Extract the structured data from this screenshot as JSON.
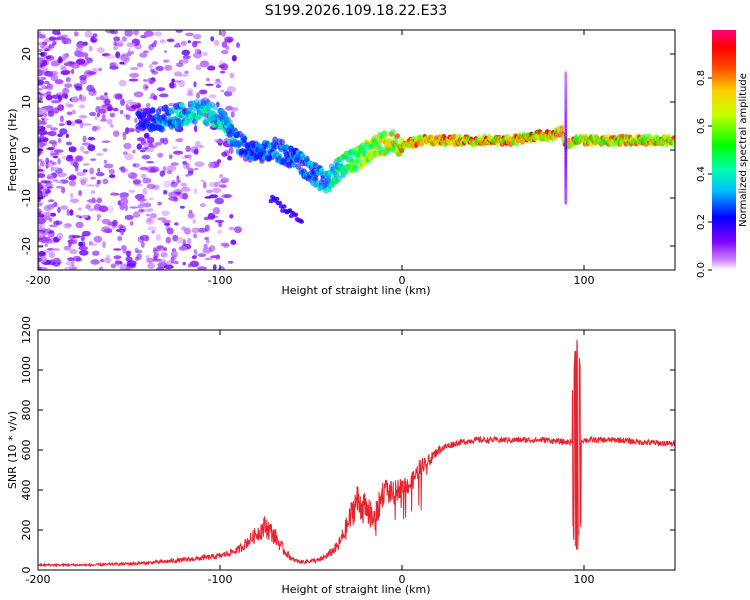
{
  "title": "S199.2026.109.18.22.E33",
  "chart_data": [
    {
      "type": "heatmap",
      "name": "spectrogram",
      "xlabel": "Height of straight line (km)",
      "ylabel": "Frequency (Hz)",
      "xlim": [
        -200,
        150
      ],
      "ylim": [
        -25,
        25
      ],
      "xticks": [
        -200,
        -100,
        0,
        100
      ],
      "yticks": [
        -20,
        -10,
        0,
        10,
        20
      ],
      "ridge": {
        "x": [
          -140,
          -125,
          -110,
          -100,
          -92,
          -85,
          -78,
          -70,
          -62,
          -55,
          -48,
          -42,
          -38,
          -32,
          -25,
          -18,
          -12,
          -5,
          0,
          10,
          20,
          40,
          60,
          75,
          82,
          88,
          90,
          95,
          110,
          130,
          150
        ],
        "y": [
          6,
          7,
          8,
          7,
          2,
          0,
          -1,
          0,
          -1,
          -3,
          -5,
          -7,
          -5,
          -3,
          -2,
          0,
          1,
          2,
          1,
          2,
          2,
          2,
          2,
          3,
          3,
          4,
          1,
          2,
          2,
          2,
          2
        ],
        "intensity": [
          0.25,
          0.4,
          0.45,
          0.45,
          0.35,
          0.3,
          0.3,
          0.35,
          0.3,
          0.35,
          0.35,
          0.4,
          0.45,
          0.55,
          0.6,
          0.7,
          0.75,
          0.8,
          0.85,
          0.9,
          0.95,
          0.95,
          0.95,
          0.9,
          0.95,
          1.0,
          0.9,
          0.85,
          0.85,
          0.85,
          0.85
        ]
      },
      "spike_x": 90
    },
    {
      "type": "line",
      "name": "snr",
      "xlabel": "Height of straight line (km)",
      "ylabel": "SNR (10 * v/v)",
      "xlim": [
        -200,
        150
      ],
      "ylim": [
        0,
        1200
      ],
      "xticks": [
        -200,
        -100,
        0,
        100
      ],
      "yticks": [
        0,
        200,
        400,
        600,
        800,
        1000,
        1200
      ],
      "envelope": {
        "x": [
          -200,
          -170,
          -140,
          -120,
          -100,
          -90,
          -80,
          -75,
          -70,
          -65,
          -60,
          -55,
          -45,
          -40,
          -35,
          -30,
          -25,
          -20,
          -15,
          -10,
          -5,
          0,
          5,
          10,
          15,
          20,
          25,
          30,
          40,
          50,
          60,
          70,
          80,
          88,
          92,
          95,
          97,
          100,
          110,
          120,
          130,
          140,
          150
        ],
        "y": [
          25,
          25,
          35,
          50,
          70,
          100,
          180,
          220,
          170,
          100,
          50,
          40,
          50,
          80,
          120,
          220,
          350,
          300,
          250,
          400,
          380,
          420,
          430,
          520,
          550,
          600,
          620,
          635,
          650,
          650,
          650,
          650,
          650,
          640,
          640,
          640,
          640,
          650,
          650,
          650,
          640,
          635,
          630
        ],
        "noise": [
          5,
          6,
          8,
          12,
          15,
          20,
          40,
          60,
          45,
          25,
          12,
          10,
          12,
          20,
          30,
          60,
          90,
          80,
          70,
          70,
          60,
          50,
          50,
          40,
          30,
          20,
          18,
          16,
          15,
          15,
          15,
          15,
          15,
          15,
          15,
          15,
          15,
          15,
          15,
          15,
          15,
          15,
          15
        ]
      },
      "spike": {
        "x": 96,
        "ymin": 50,
        "ymax": 1200
      }
    }
  ],
  "colorbar": {
    "label": "Normalized spectral amplitude",
    "ticks": [
      "0.0",
      "0.2",
      "0.4",
      "0.6",
      "0.8"
    ]
  }
}
